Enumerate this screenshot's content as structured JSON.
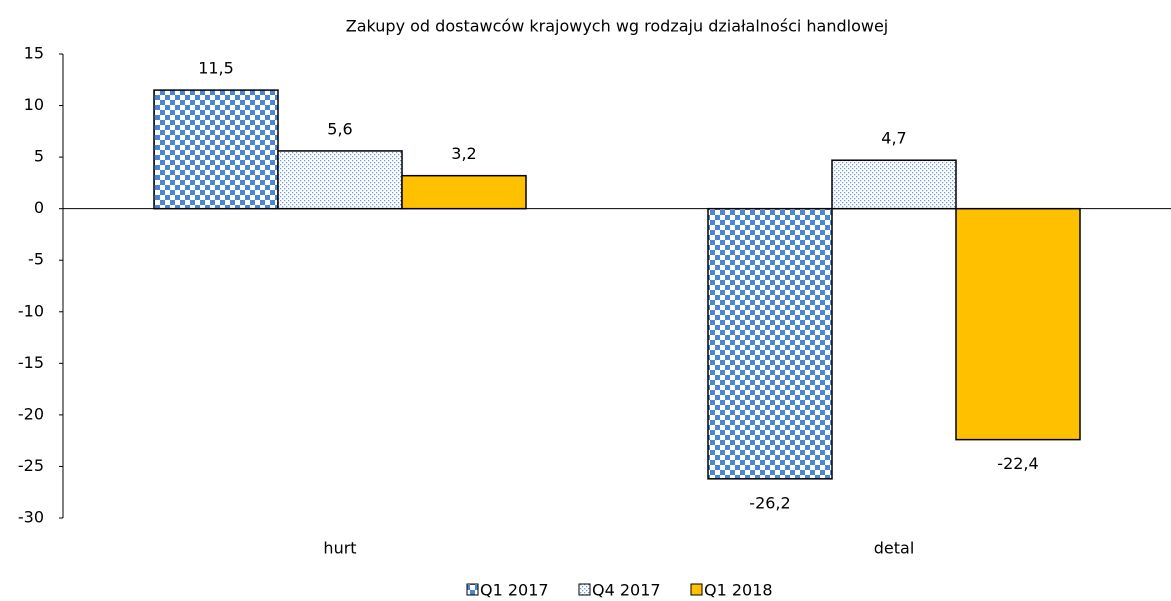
{
  "chart_data": {
    "type": "bar",
    "title": "Zakupy od dostawców krajowych wg rodzaju działalności handlowej",
    "categories": [
      "hurt",
      "detal"
    ],
    "series": [
      {
        "name": "Q1 2017",
        "color": "#4a86d6",
        "pattern": "checker",
        "values": [
          11.5,
          -26.2
        ],
        "value_labels": [
          "11,5",
          "-26,2"
        ]
      },
      {
        "name": "Q4 2017",
        "color": "#6fa0dc",
        "pattern": "dots",
        "values": [
          5.6,
          4.7
        ],
        "value_labels": [
          "5,6",
          "4,7"
        ]
      },
      {
        "name": "Q1 2018",
        "color": "#ffc000",
        "pattern": "solid",
        "values": [
          3.2,
          -22.4
        ],
        "value_labels": [
          "3,2",
          "-22,4"
        ]
      }
    ],
    "ylim": [
      -30,
      15
    ],
    "yticks": [
      15,
      10,
      5,
      0,
      -5,
      -10,
      -15,
      -20,
      -25,
      -30
    ],
    "legend": "bottom"
  }
}
